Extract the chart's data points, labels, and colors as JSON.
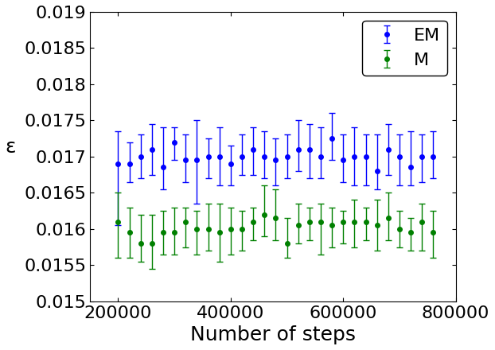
{
  "title": "",
  "xlabel": "Number of steps",
  "ylabel": "ε",
  "xlim": [
    150000,
    800000
  ],
  "ylim": [
    0.015,
    0.019
  ],
  "yticks": [
    0.015,
    0.0155,
    0.016,
    0.0165,
    0.017,
    0.0175,
    0.018,
    0.0185,
    0.019
  ],
  "ytick_labels": [
    "0.015",
    "0.0155",
    "0.016",
    "0.0165",
    "0.017",
    "0.0175",
    "0.018",
    "0.0185",
    "0.019"
  ],
  "xticks": [
    200000,
    400000,
    600000,
    800000
  ],
  "xtick_labels": [
    "200000",
    "400000",
    "600000",
    "800000"
  ],
  "em_x": [
    200000,
    220000,
    240000,
    260000,
    280000,
    300000,
    320000,
    340000,
    360000,
    380000,
    400000,
    420000,
    440000,
    460000,
    480000,
    500000,
    520000,
    540000,
    560000,
    580000,
    600000,
    620000,
    640000,
    660000,
    680000,
    700000,
    720000,
    740000,
    760000
  ],
  "em_y": [
    0.0169,
    0.0169,
    0.017,
    0.0171,
    0.01685,
    0.0172,
    0.01695,
    0.01695,
    0.017,
    0.017,
    0.0169,
    0.017,
    0.0171,
    0.017,
    0.01695,
    0.017,
    0.0171,
    0.0171,
    0.017,
    0.01725,
    0.01695,
    0.017,
    0.017,
    0.0168,
    0.0171,
    0.017,
    0.01685,
    0.017,
    0.017
  ],
  "em_yerr_lo": [
    0.00085,
    0.00025,
    0.0003,
    0.00035,
    0.0003,
    0.00025,
    0.0003,
    0.0006,
    0.0003,
    0.0004,
    0.0003,
    0.00025,
    0.00035,
    0.0003,
    0.00035,
    0.0003,
    0.0003,
    0.0004,
    0.0003,
    0.0003,
    0.0003,
    0.0004,
    0.0004,
    0.00025,
    0.00035,
    0.0004,
    0.00025,
    0.00035,
    0.0003
  ],
  "em_yerr_hi": [
    0.00045,
    0.0003,
    0.0003,
    0.00035,
    0.00055,
    0.0002,
    0.00035,
    0.00055,
    0.00025,
    0.0004,
    0.00025,
    0.0003,
    0.0003,
    0.00035,
    0.0003,
    0.0003,
    0.0004,
    0.00035,
    0.0004,
    0.00035,
    0.00035,
    0.0004,
    0.0003,
    0.0005,
    0.00035,
    0.0003,
    0.0005,
    0.0003,
    0.00035
  ],
  "m_x": [
    200000,
    220000,
    240000,
    260000,
    280000,
    300000,
    320000,
    340000,
    360000,
    380000,
    400000,
    420000,
    440000,
    460000,
    480000,
    500000,
    520000,
    540000,
    560000,
    580000,
    600000,
    620000,
    640000,
    660000,
    680000,
    700000,
    720000,
    740000,
    760000
  ],
  "m_y": [
    0.0161,
    0.01595,
    0.0158,
    0.0158,
    0.01595,
    0.01595,
    0.0161,
    0.016,
    0.016,
    0.01595,
    0.016,
    0.016,
    0.0161,
    0.0162,
    0.01615,
    0.0158,
    0.01605,
    0.0161,
    0.0161,
    0.01605,
    0.0161,
    0.0161,
    0.0161,
    0.01605,
    0.01615,
    0.016,
    0.01595,
    0.0161,
    0.01595
  ],
  "m_yerr_lo": [
    0.0005,
    0.00035,
    0.00025,
    0.00035,
    0.0003,
    0.0003,
    0.00035,
    0.00035,
    0.0003,
    0.0004,
    0.00035,
    0.0003,
    0.00025,
    0.0003,
    0.0003,
    0.0002,
    0.00025,
    0.00025,
    0.00045,
    0.0003,
    0.0003,
    0.00035,
    0.00025,
    0.00035,
    0.0003,
    0.00025,
    0.00025,
    0.0004,
    0.00035
  ],
  "m_yerr_hi": [
    0.0004,
    0.00035,
    0.0004,
    0.0004,
    0.0003,
    0.00035,
    0.0002,
    0.00025,
    0.00035,
    0.0004,
    0.0003,
    0.00025,
    0.0002,
    0.0004,
    0.0004,
    0.00035,
    0.0003,
    0.0002,
    0.00025,
    0.00025,
    0.00015,
    0.0003,
    0.0002,
    0.00035,
    0.00035,
    0.00025,
    0.0002,
    0.00025,
    0.0003
  ],
  "em_color": "#0000ff",
  "m_color": "#008000",
  "capsize": 3,
  "markersize": 4,
  "elinewidth": 1.0,
  "background_color": "#ffffff",
  "font_size": 16,
  "label_font_size": 18
}
